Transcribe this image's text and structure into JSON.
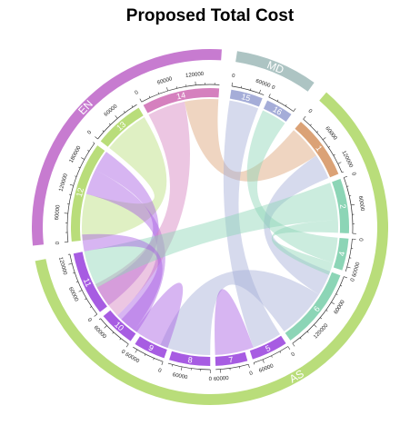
{
  "chart_data": {
    "type": "chord",
    "title": "Proposed Total Cost",
    "groups": [
      {
        "name": "EN",
        "color": "#c77bd0"
      },
      {
        "name": "MD",
        "color": "#adc4c3"
      },
      {
        "name": "AS",
        "color": "#b9dd7a"
      }
    ],
    "sectors": [
      {
        "id": "12",
        "group": "EN",
        "color": "#b9dd7a",
        "value": 220000,
        "ticks": [
          "0",
          "60000",
          "120000",
          "180000"
        ]
      },
      {
        "id": "13",
        "group": "EN",
        "color": "#b9dd7a",
        "value": 110000,
        "ticks": [
          "0",
          "60000"
        ]
      },
      {
        "id": "14",
        "group": "EN",
        "color": "#d580be",
        "value": 170000,
        "ticks": [
          "0",
          "60000",
          "120000"
        ]
      },
      {
        "id": "15",
        "group": "MD",
        "color": "#a5add8",
        "value": 70000,
        "ticks": [
          "0",
          "60000"
        ]
      },
      {
        "id": "16",
        "group": "MD",
        "color": "#a5add8",
        "value": 60000,
        "ticks": [
          "0"
        ]
      },
      {
        "id": "1",
        "group": "AS",
        "color": "#dba276",
        "value": 140000,
        "ticks": [
          "0",
          "60000",
          "120000"
        ]
      },
      {
        "id": "2",
        "group": "AS",
        "color": "#8cd5b6",
        "value": 120000,
        "ticks": [
          "0",
          "60000"
        ]
      },
      {
        "id": "4",
        "group": "AS",
        "color": "#8cd5b6",
        "value": 70000,
        "ticks": [
          "0",
          "60000"
        ]
      },
      {
        "id": "6",
        "group": "AS",
        "color": "#8cd5b6",
        "value": 180000,
        "ticks": [
          "0",
          "60000",
          "120000"
        ]
      },
      {
        "id": "5",
        "group": "AS",
        "color": "#a75ce2",
        "value": 80000,
        "ticks": [
          "0",
          "60000"
        ]
      },
      {
        "id": "7",
        "group": "AS",
        "color": "#a75ce2",
        "value": 70000,
        "ticks": [
          "0",
          "60000"
        ]
      },
      {
        "id": "8",
        "group": "AS",
        "color": "#a75ce2",
        "value": 90000,
        "ticks": [
          "0",
          "60000"
        ]
      },
      {
        "id": "9",
        "group": "AS",
        "color": "#a75ce2",
        "value": 70000,
        "ticks": [
          "0",
          "60000"
        ]
      },
      {
        "id": "10",
        "group": "AS",
        "color": "#a75ce2",
        "value": 80000,
        "ticks": [
          "0",
          "60000"
        ]
      },
      {
        "id": "11",
        "group": "AS",
        "color": "#a75ce2",
        "value": 140000,
        "ticks": [
          "0",
          "60000",
          "120000"
        ]
      }
    ],
    "links": [
      {
        "from": "12",
        "to": "13",
        "value": 110000,
        "color": "#b9dd7a"
      },
      {
        "from": "12",
        "to": "10",
        "value": 60000,
        "color": "#a75ce2"
      },
      {
        "from": "12",
        "to": "11",
        "value": 50000,
        "color": "#a75ce2"
      },
      {
        "from": "14",
        "to": "10",
        "value": 90000,
        "color": "#d580be"
      },
      {
        "from": "14",
        "to": "1",
        "value": 80000,
        "color": "#dba276"
      },
      {
        "from": "15",
        "to": "5",
        "value": 70000,
        "color": "#a5add8"
      },
      {
        "from": "16",
        "to": "4",
        "value": 60000,
        "color": "#8cd5b6"
      },
      {
        "from": "1",
        "to": "6",
        "value": 60000,
        "color": "#a5add8"
      },
      {
        "from": "2",
        "to": "11",
        "value": 90000,
        "color": "#8cd5b6"
      },
      {
        "from": "2",
        "to": "4",
        "value": 30000,
        "color": "#8cd5b6"
      },
      {
        "from": "6",
        "to": "8",
        "value": 120000,
        "color": "#a5add8"
      },
      {
        "from": "7",
        "to": "5",
        "value": 70000,
        "color": "#a75ce2"
      },
      {
        "from": "9",
        "to": "8",
        "value": 70000,
        "color": "#a75ce2"
      },
      {
        "from": "8",
        "to": "11",
        "value": 40000,
        "color": "#a75ce2"
      }
    ]
  }
}
